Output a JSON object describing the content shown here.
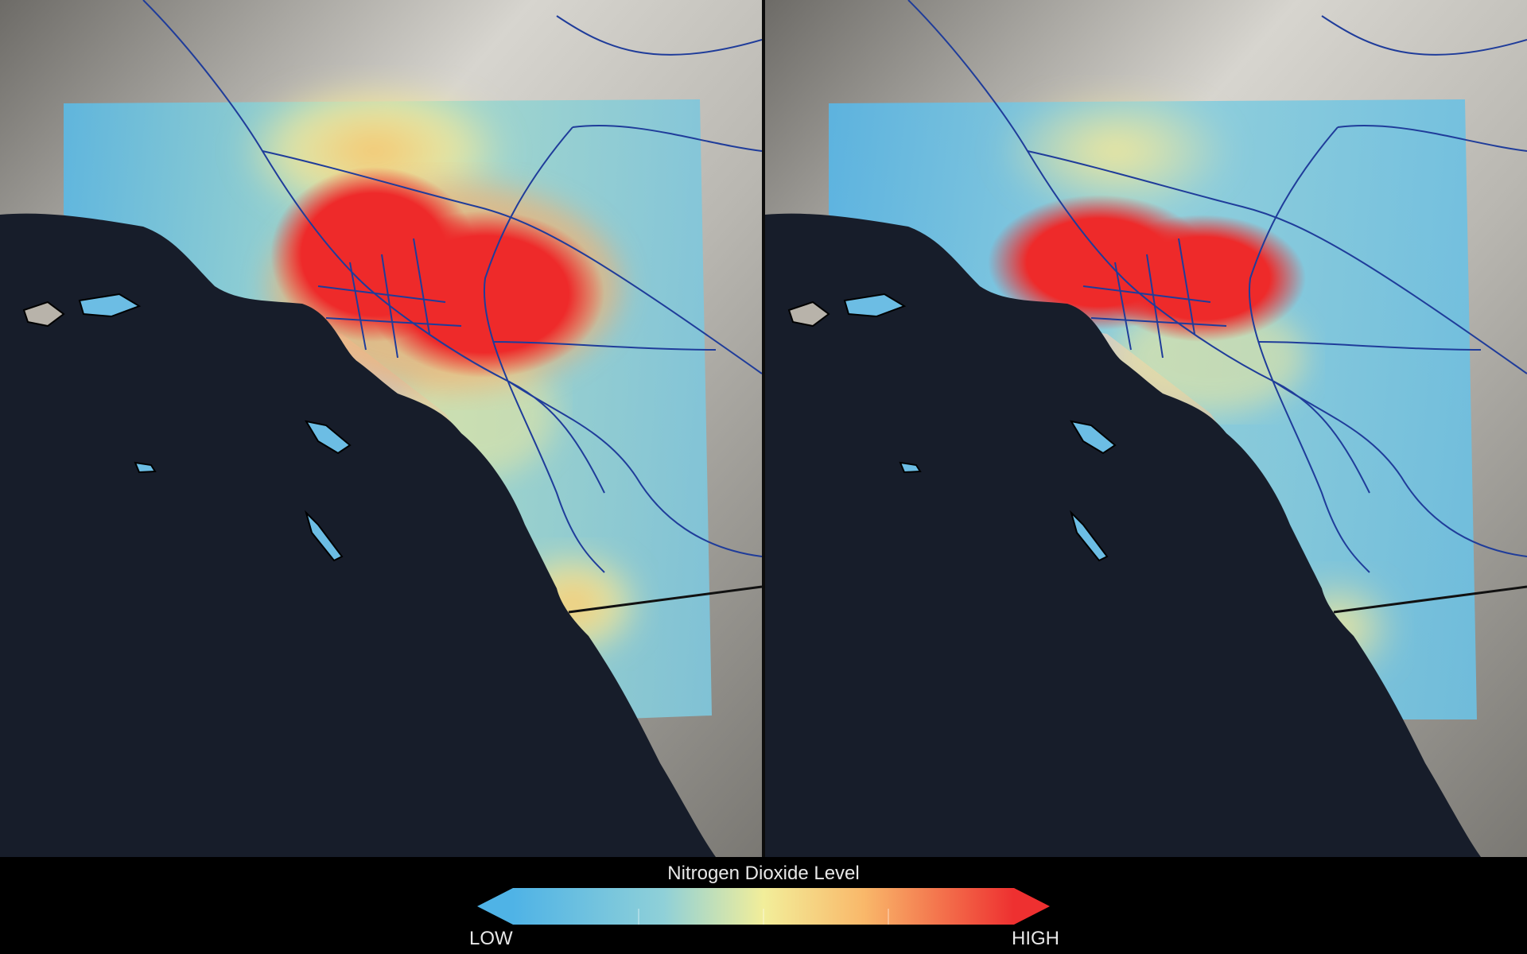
{
  "legend": {
    "title": "Nitrogen Dioxide Level",
    "low_label": "LOW",
    "high_label": "HIGH",
    "scale_colors": [
      "#4fb3e6",
      "#8fd0d8",
      "#f2ee9a",
      "#f9b86a",
      "#ee3030"
    ]
  },
  "maps": [
    {
      "name": "left",
      "hotspot_intensity": 1.0
    },
    {
      "name": "right",
      "hotspot_intensity": 0.75
    }
  ],
  "colors": {
    "ocean": "#171d2a",
    "land": "#8d8b86",
    "roads": "#1f3c9a",
    "border": "#111111"
  }
}
